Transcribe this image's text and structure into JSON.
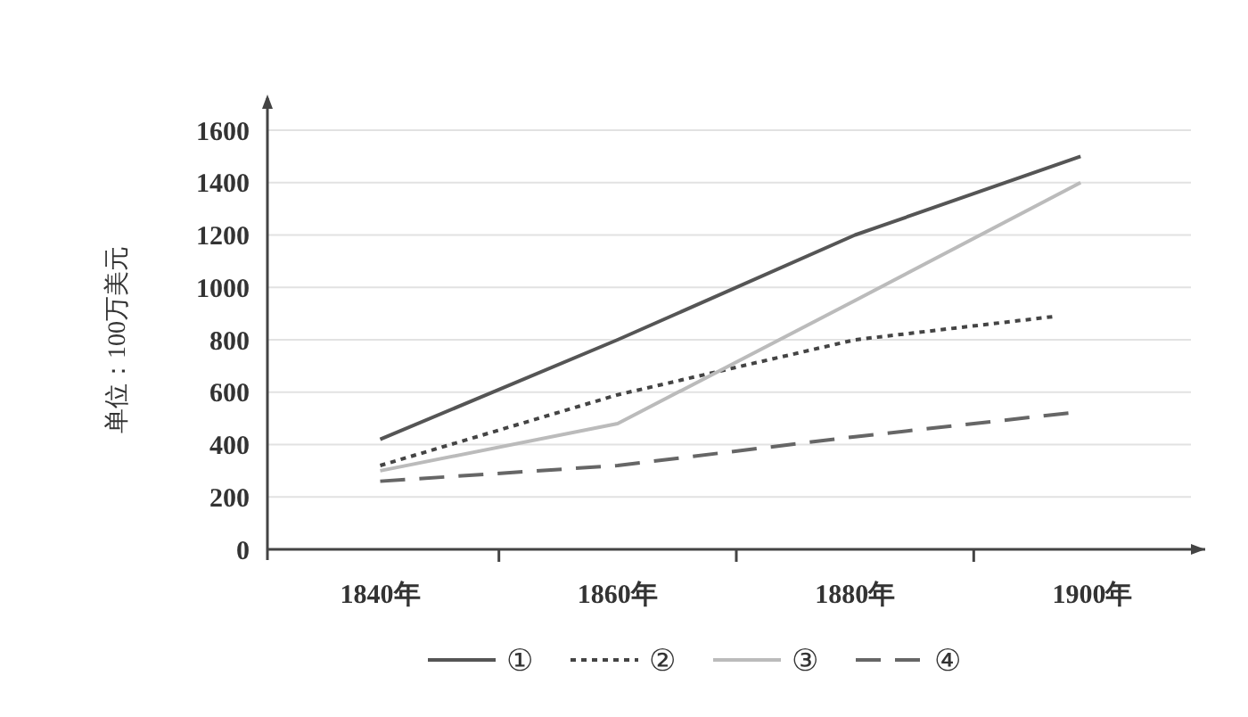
{
  "chart_data": {
    "type": "line",
    "ylabel": "单位：100万美元",
    "xlim": [
      1830.5,
      1909.5
    ],
    "xticks": [
      {
        "value": 1840,
        "label": "1840年"
      },
      {
        "value": 1850,
        "label": null
      },
      {
        "value": 1860,
        "label": "1860年"
      },
      {
        "value": 1870,
        "label": null
      },
      {
        "value": 1880,
        "label": "1880年"
      },
      {
        "value": 1890,
        "label": null
      },
      {
        "value": 1900,
        "label": "1900年"
      }
    ],
    "ylim": [
      0,
      1600
    ],
    "yticks": [
      0,
      200,
      400,
      600,
      800,
      1000,
      1200,
      1400,
      1600
    ],
    "grid": "y",
    "legend": "bottom",
    "marker": "none",
    "series": [
      {
        "name": "①",
        "color": "#555555",
        "line_style": "solid",
        "x": [
          1840,
          1860,
          1880,
          1899
        ],
        "values": [
          420,
          800,
          1200,
          1500
        ]
      },
      {
        "name": "②",
        "color": "#444444",
        "line_style": "dotted",
        "x": [
          1840,
          1860,
          1880,
          1897
        ],
        "values": [
          320,
          590,
          800,
          890
        ]
      },
      {
        "name": "③",
        "color": "#bbbbbb",
        "line_style": "solid",
        "x": [
          1840,
          1860,
          1880,
          1899
        ],
        "values": [
          300,
          480,
          950,
          1400
        ]
      },
      {
        "name": "④",
        "color": "#666666",
        "line_style": "dashed",
        "x": [
          1840,
          1860,
          1880,
          1898
        ],
        "values": [
          260,
          320,
          430,
          520
        ]
      }
    ]
  }
}
